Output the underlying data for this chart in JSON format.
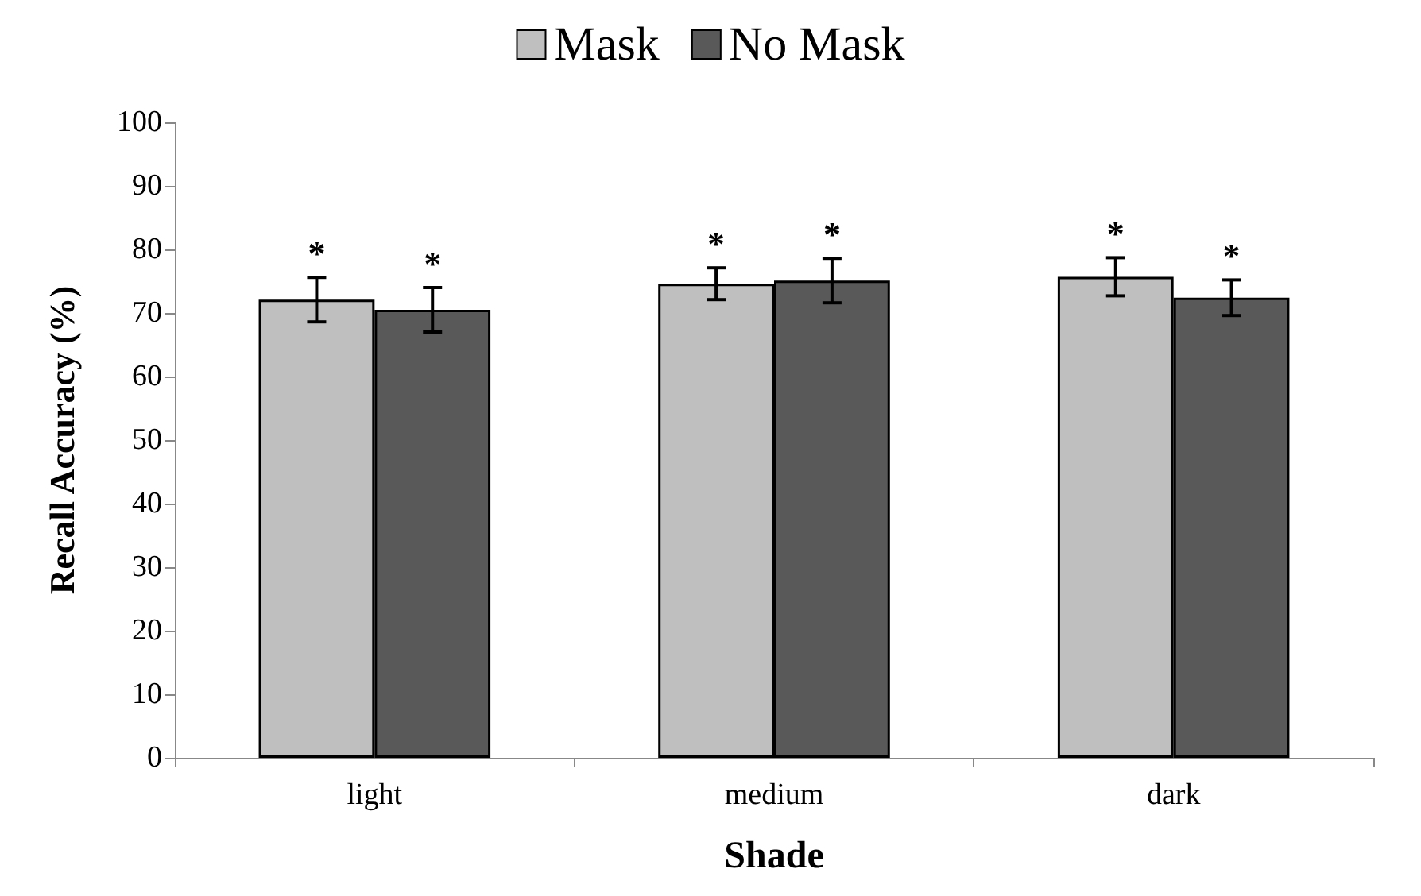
{
  "chart_data": {
    "type": "bar",
    "xlabel": "Shade",
    "ylabel": "Recall Accuracy (%)",
    "categories": [
      "light",
      "medium",
      "dark"
    ],
    "series": [
      {
        "name": "Mask",
        "color": "#bfbfbf",
        "values": [
          72.1,
          74.6,
          75.7
        ],
        "errors": [
          3.5,
          2.5,
          3
        ],
        "value_labels": [
          "*",
          "*",
          "*"
        ]
      },
      {
        "name": "No Mask",
        "color": "#595959",
        "values": [
          70.5,
          75.1,
          72.4
        ],
        "errors": [
          3.5,
          3.5,
          2.8
        ],
        "value_labels": [
          "*",
          "*",
          "*"
        ]
      }
    ],
    "ylim": [
      0,
      100
    ],
    "yticks": [
      0,
      10,
      20,
      30,
      40,
      50,
      60,
      70,
      80,
      90,
      100
    ],
    "grid": false,
    "legend": "top"
  }
}
